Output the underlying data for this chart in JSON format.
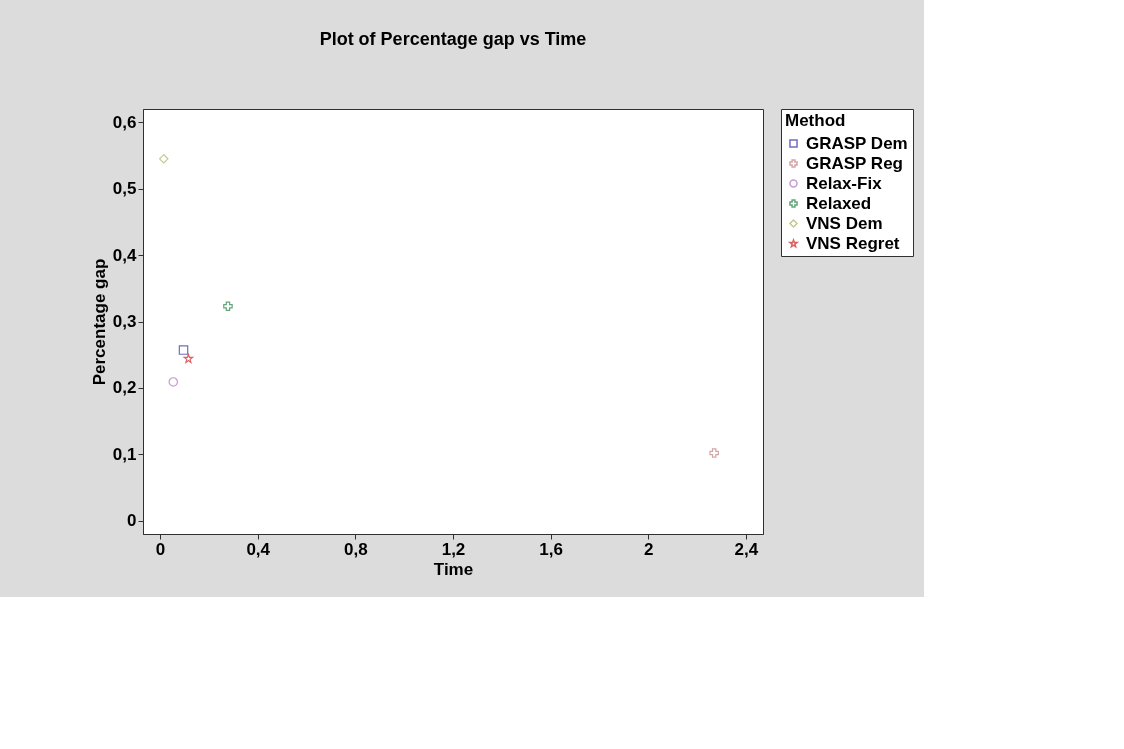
{
  "chart_data": {
    "type": "scatter",
    "title": "Plot of Percentage gap vs Time",
    "xlabel": "Time",
    "ylabel": "Percentage gap",
    "legend_title": "Method",
    "legend": "right",
    "grid": false,
    "xlim": [
      -0.07,
      2.47
    ],
    "ylim": [
      -0.02,
      0.62
    ],
    "xticks": [
      0,
      {
        "value": 0.4,
        "label": "0,4"
      },
      {
        "value": 0.8,
        "label": "0,8"
      },
      {
        "value": 1.2,
        "label": "1,2"
      },
      {
        "value": 1.6,
        "label": "1,6"
      },
      2,
      {
        "value": 2.4,
        "label": "2,4"
      }
    ],
    "yticks": [
      0,
      {
        "value": 0.1,
        "label": "0,1"
      },
      {
        "value": 0.2,
        "label": "0,2"
      },
      {
        "value": 0.3,
        "label": "0,3"
      },
      {
        "value": 0.4,
        "label": "0,4"
      },
      {
        "value": 0.5,
        "label": "0,5"
      },
      {
        "value": 0.6,
        "label": "0,6"
      }
    ],
    "series": [
      {
        "name": "GRASP Dem",
        "color": "#3030a0",
        "marker": "square",
        "x": [
          0.096
        ],
        "values": [
          0.257
        ]
      },
      {
        "name": "GRASP Reg",
        "color": "#c08080",
        "marker": "cross",
        "x": [
          2.27
        ],
        "values": [
          0.102
        ]
      },
      {
        "name": "Relax-Fix",
        "color": "#b070c0",
        "marker": "circle",
        "x": [
          0.054
        ],
        "values": [
          0.209
        ]
      },
      {
        "name": "Relaxed",
        "color": "#208040",
        "marker": "cross",
        "x": [
          0.278
        ],
        "values": [
          0.323
        ]
      },
      {
        "name": "VNS Dem",
        "color": "#b0b060",
        "marker": "diamond",
        "x": [
          0.015
        ],
        "values": [
          0.545
        ]
      },
      {
        "name": "VNS Regret",
        "color": "#d02020",
        "marker": "star",
        "x": [
          0.116
        ],
        "values": [
          0.244
        ]
      }
    ]
  }
}
